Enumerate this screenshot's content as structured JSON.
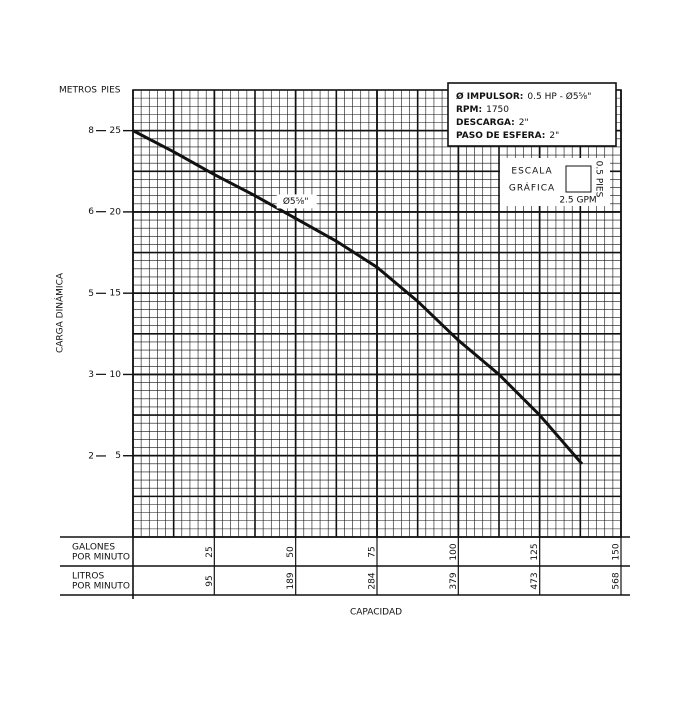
{
  "chart_data": {
    "type": "line",
    "y_label_left": "METROS",
    "y_label_right": "PIES",
    "y_axis_title": "CARGA DINÁMICA",
    "x_row1_label": [
      "GALONES",
      "POR MINUTO"
    ],
    "x_row2_label": [
      "LITROS",
      "POR MINUTO"
    ],
    "x_axis_title": "CAPACIDAD",
    "x": [
      0,
      12.5,
      25,
      37.5,
      50,
      62.5,
      75,
      87.5,
      100,
      112.5,
      125,
      138
    ],
    "series": [
      {
        "name": "Ø5⅝\"",
        "color": "#111111",
        "values": [
          25,
          23.7,
          22.3,
          21.0,
          19.6,
          18.2,
          16.6,
          14.5,
          12.1,
          10.0,
          7.5,
          4.5
        ]
      }
    ],
    "xlim": [
      0,
      150
    ],
    "xticks": [
      25,
      50,
      75,
      100,
      125,
      150
    ],
    "x2lim": [
      0,
      567.8
    ],
    "x2ticks": [
      {
        "value": 94.6,
        "label": "95"
      },
      {
        "value": 189.3,
        "label": "189"
      },
      {
        "value": 283.9,
        "label": "284"
      },
      {
        "value": 378.5,
        "label": "379"
      },
      {
        "value": 473.2,
        "label": "473"
      },
      {
        "value": 567.8,
        "label": "568"
      }
    ],
    "ylim": [
      0,
      27.5
    ],
    "yticks": [
      5,
      10,
      15,
      20,
      25
    ],
    "y2lim": [
      0,
      8.382
    ],
    "y2ticks": [
      {
        "value": 1.52,
        "label": "2"
      },
      {
        "value": 3.05,
        "label": "3"
      },
      {
        "value": 4.57,
        "label": "5"
      },
      {
        "value": 6.1,
        "label": "6"
      },
      {
        "value": 7.62,
        "label": "8"
      }
    ],
    "grid": true,
    "info": [
      {
        "key": "Ø IMPULSOR:",
        "val": "0.5 HP - Ø5⅝\""
      },
      {
        "key": "RPM:",
        "val": "1750"
      },
      {
        "key": "DESCARGA:",
        "val": "2\""
      },
      {
        "key": "PASO DE ESFERA:",
        "val": "2\""
      }
    ],
    "scale_box": {
      "line1": "ESCALA",
      "line2": "GRÁFICA",
      "height": "0.5 PIES",
      "width": "2.5 GPM"
    }
  }
}
